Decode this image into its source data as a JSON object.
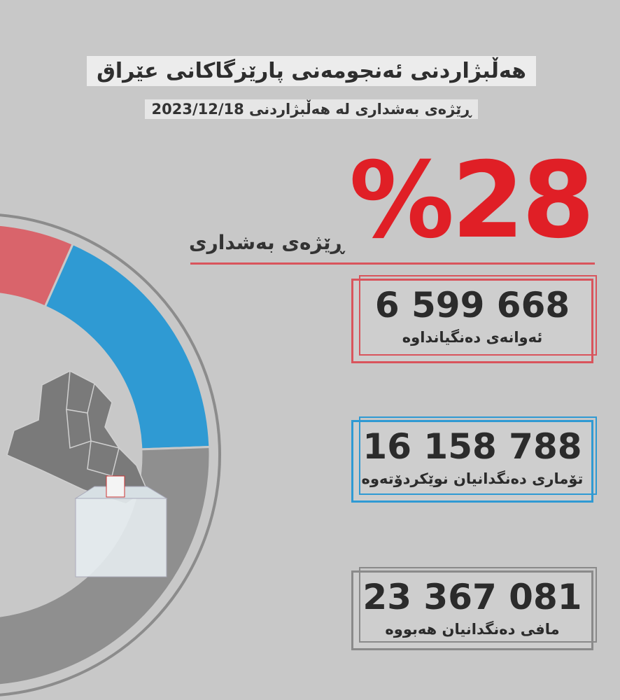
{
  "header": {
    "title": "هەڵبژاردنی ئەنجومەنی پارێزگاکانی عێراق",
    "subtitle": "ڕێژەی بەشداری لە هەڵبژاردنی 2023/12/18"
  },
  "participation": {
    "value": "%28",
    "label": "ڕێژەی بەشداری"
  },
  "stats": [
    {
      "number": "6 599 668",
      "label": "ئەوانەی دەنگیانداوە"
    },
    {
      "number": "16 158 788",
      "label": "تۆماری دەنگدانیان نوێکردۆتەوە"
    },
    {
      "number": "23 367 081",
      "label": "مافی دەنگدانیان هەبووە"
    }
  ]
}
